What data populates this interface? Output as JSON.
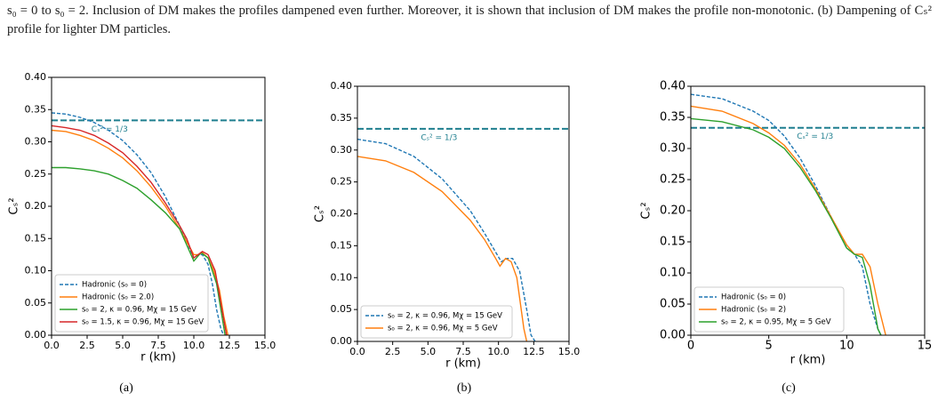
{
  "paragraph": "s₀ = 0 to s₀ = 2. Inclusion of DM makes the profiles dampened even further. Moreover, it is shown that inclusion of DM makes the profile non-monotonic. (b) Dampening of Cₛ² profile for lighter DM particles.",
  "captions": [
    "(a)",
    "(b)",
    "(c)"
  ],
  "chart_data": [
    {
      "type": "line",
      "xlabel": "r (km)",
      "ylabel": "Cₛ²",
      "xlim": [
        0,
        15
      ],
      "xticks": [
        {
          "value": 0,
          "label": "0.0"
        },
        {
          "value": 2.5,
          "label": "2.5"
        },
        {
          "value": 5,
          "label": "5.0"
        },
        {
          "value": 7.5,
          "label": "7.5"
        },
        {
          "value": 10,
          "label": "10.0"
        },
        {
          "value": 12.5,
          "label": "12.5"
        },
        {
          "value": 15,
          "label": "15.0"
        }
      ],
      "ylim": [
        0,
        0.4
      ],
      "yticks": [
        {
          "value": 0,
          "label": "0.00"
        },
        {
          "value": 0.05,
          "label": "0.05"
        },
        {
          "value": 0.1,
          "label": "0.10"
        },
        {
          "value": 0.15,
          "label": "0.15"
        },
        {
          "value": 0.2,
          "label": "0.20"
        },
        {
          "value": 0.25,
          "label": "0.25"
        },
        {
          "value": 0.3,
          "label": "0.30"
        },
        {
          "value": 0.35,
          "label": "0.35"
        },
        {
          "value": 0.4,
          "label": "0.40"
        }
      ],
      "hline": {
        "value": 0.3333,
        "label": "Cₛ² = 1/3",
        "color": "#1f7f8f"
      },
      "legend": "lower left",
      "series": [
        {
          "name": "Hadronic (s₀ = 0)",
          "color": "#1f77b4",
          "dashed": true,
          "x": [
            0,
            1,
            2,
            3,
            4,
            5,
            6,
            7,
            8,
            9,
            9.5,
            10,
            10.3,
            10.6,
            11,
            11.3,
            11.6,
            11.9,
            12.1
          ],
          "values": [
            0.345,
            0.343,
            0.338,
            0.33,
            0.318,
            0.302,
            0.28,
            0.252,
            0.215,
            0.17,
            0.145,
            0.12,
            0.125,
            0.125,
            0.11,
            0.08,
            0.04,
            0.01,
            0
          ]
        },
        {
          "name": "Hadronic (s₀ = 2.0)",
          "color": "#ff7f0e",
          "dashed": false,
          "x": [
            0,
            1,
            2,
            3,
            4,
            5,
            6,
            7,
            8,
            9,
            9.5,
            10,
            10.3,
            10.6,
            11,
            11.4,
            11.8,
            12.1,
            12.4
          ],
          "values": [
            0.318,
            0.316,
            0.31,
            0.302,
            0.29,
            0.275,
            0.255,
            0.23,
            0.2,
            0.165,
            0.145,
            0.125,
            0.125,
            0.128,
            0.12,
            0.1,
            0.07,
            0.03,
            0
          ]
        },
        {
          "name": "s₀ = 2, κ = 0.96, Mχ = 15 GeV",
          "color": "#2ca02c",
          "dashed": false,
          "x": [
            0,
            1,
            2,
            3,
            4,
            5,
            6,
            7,
            8,
            9,
            9.5,
            10,
            10.5,
            11,
            11.6,
            12.2
          ],
          "values": [
            0.26,
            0.26,
            0.258,
            0.255,
            0.25,
            0.24,
            0.228,
            0.21,
            0.19,
            0.165,
            0.14,
            0.115,
            0.128,
            0.12,
            0.08,
            0
          ]
        },
        {
          "name": "s₀ = 1.5, κ = 0.96, Mχ = 15 GeV",
          "color": "#d62728",
          "dashed": false,
          "x": [
            0,
            1,
            2,
            3,
            4,
            5,
            6,
            7,
            8,
            9,
            9.5,
            10,
            10.6,
            11,
            11.5,
            11.9,
            12.3
          ],
          "values": [
            0.325,
            0.322,
            0.318,
            0.31,
            0.298,
            0.283,
            0.262,
            0.237,
            0.205,
            0.17,
            0.15,
            0.12,
            0.13,
            0.125,
            0.1,
            0.05,
            0
          ]
        }
      ]
    },
    {
      "type": "line",
      "xlabel": "r (km)",
      "ylabel": "Cₛ²",
      "xlim": [
        0,
        15
      ],
      "xticks": [
        {
          "value": 0,
          "label": "0.0"
        },
        {
          "value": 2.5,
          "label": "2.5"
        },
        {
          "value": 5,
          "label": "5.0"
        },
        {
          "value": 7.5,
          "label": "7.5"
        },
        {
          "value": 10,
          "label": "10.0"
        },
        {
          "value": 12.5,
          "label": "12.5"
        },
        {
          "value": 15,
          "label": "15.0"
        }
      ],
      "ylim": [
        0,
        0.4
      ],
      "yticks": [
        {
          "value": 0,
          "label": "0.00"
        },
        {
          "value": 0.05,
          "label": "0.05"
        },
        {
          "value": 0.1,
          "label": "0.10"
        },
        {
          "value": 0.15,
          "label": "0.15"
        },
        {
          "value": 0.2,
          "label": "0.20"
        },
        {
          "value": 0.25,
          "label": "0.25"
        },
        {
          "value": 0.3,
          "label": "0.30"
        },
        {
          "value": 0.35,
          "label": "0.35"
        },
        {
          "value": 0.4,
          "label": "0.40"
        }
      ],
      "hline": {
        "value": 0.3333,
        "label": "Cₛ² = 1/3",
        "color": "#1f7f8f"
      },
      "legend": "lower left",
      "series": [
        {
          "name": "s₀ = 2, κ = 0.96, Mχ = 15 GeV",
          "color": "#1f77b4",
          "dashed": true,
          "x": [
            0,
            2,
            4,
            6,
            8,
            9,
            9.8,
            10.2,
            10.6,
            11,
            11.5,
            12,
            12.3,
            12.6
          ],
          "values": [
            0.317,
            0.31,
            0.29,
            0.255,
            0.205,
            0.17,
            0.14,
            0.125,
            0.13,
            0.13,
            0.11,
            0.05,
            0.01,
            0
          ]
        },
        {
          "name": "s₀ = 2, κ = 0.96, Mχ = 5 GeV",
          "color": "#ff7f0e",
          "dashed": false,
          "x": [
            0,
            2,
            4,
            6,
            8,
            9,
            9.8,
            10.1,
            10.5,
            10.9,
            11.3,
            11.8,
            12
          ],
          "values": [
            0.29,
            0.283,
            0.265,
            0.235,
            0.19,
            0.16,
            0.13,
            0.118,
            0.13,
            0.125,
            0.1,
            0.02,
            0
          ]
        }
      ]
    },
    {
      "type": "line",
      "xlabel": "r (km)",
      "ylabel": "Cₛ²",
      "xlim": [
        0,
        15
      ],
      "xticks": [
        0,
        5,
        10,
        15
      ],
      "ylim": [
        0,
        0.4
      ],
      "yticks": [
        {
          "value": 0,
          "label": "0.00"
        },
        {
          "value": 0.05,
          "label": "0.05"
        },
        {
          "value": 0.1,
          "label": "0.10"
        },
        {
          "value": 0.15,
          "label": "0.15"
        },
        {
          "value": 0.2,
          "label": "0.20"
        },
        {
          "value": 0.25,
          "label": "0.25"
        },
        {
          "value": 0.3,
          "label": "0.30"
        },
        {
          "value": 0.35,
          "label": "0.35"
        },
        {
          "value": 0.4,
          "label": "0.40"
        }
      ],
      "hline": {
        "value": 0.3333,
        "label": "Cₛ² = 1/3",
        "color": "#1f7f8f"
      },
      "legend": "lower left",
      "series": [
        {
          "name": "Hadronic (s₀ = 0)",
          "color": "#1f77b4",
          "dashed": true,
          "x": [
            0,
            2,
            4,
            5,
            6,
            7,
            8,
            9,
            10,
            10.5,
            11,
            11.5,
            12,
            12.2
          ],
          "values": [
            0.387,
            0.38,
            0.36,
            0.345,
            0.32,
            0.285,
            0.24,
            0.19,
            0.14,
            0.13,
            0.11,
            0.05,
            0.01,
            0
          ]
        },
        {
          "name": "Hadronic (s₀ = 2)",
          "color": "#ff7f0e",
          "dashed": false,
          "x": [
            0,
            2,
            4,
            5,
            6,
            7,
            8,
            9,
            10,
            10.5,
            11,
            11.5,
            12,
            12.5
          ],
          "values": [
            0.368,
            0.36,
            0.34,
            0.325,
            0.305,
            0.275,
            0.235,
            0.19,
            0.145,
            0.13,
            0.13,
            0.11,
            0.05,
            0
          ]
        },
        {
          "name": "s₀ = 2, κ = 0.95, Mχ = 5 GeV",
          "color": "#2ca02c",
          "dashed": false,
          "x": [
            0,
            2,
            4,
            5,
            6,
            7,
            8,
            9,
            10,
            10.5,
            11,
            11.5,
            12,
            12.2
          ],
          "values": [
            0.348,
            0.343,
            0.33,
            0.318,
            0.3,
            0.27,
            0.232,
            0.188,
            0.14,
            0.13,
            0.125,
            0.08,
            0.01,
            0
          ]
        }
      ]
    }
  ]
}
